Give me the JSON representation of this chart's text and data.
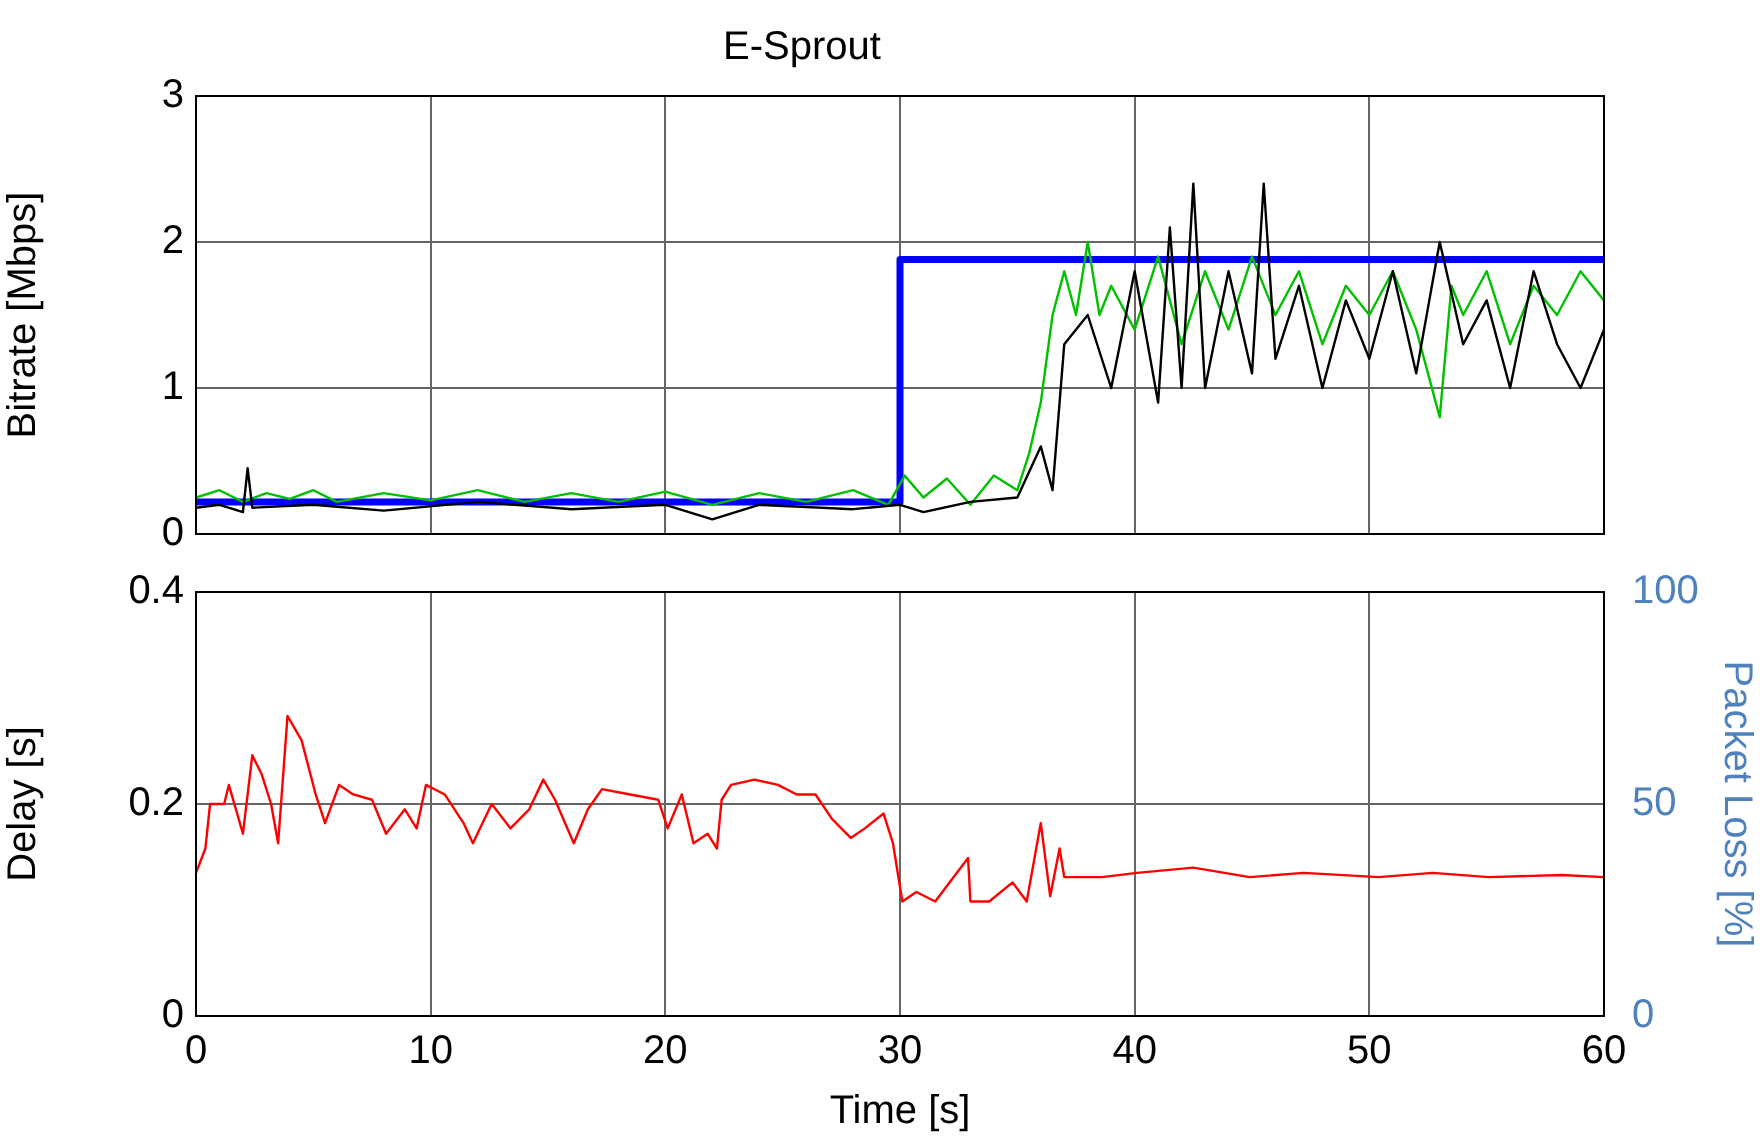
{
  "chart_data": [
    {
      "type": "line",
      "title": "E-Sprout",
      "ylabel": "Bitrate [Mbps]",
      "xlim": [
        0,
        60
      ],
      "xticks": [
        0,
        10,
        20,
        30,
        40,
        50,
        60
      ],
      "ylim": [
        0,
        3
      ],
      "yticks": [
        0,
        1,
        2,
        3
      ],
      "grid": true,
      "tick_labels": "y",
      "series": [
        {
          "color": "#000000",
          "x": [
            0,
            1,
            2,
            2.2,
            2.4,
            5,
            8,
            12,
            16,
            20,
            22,
            24,
            28,
            30,
            31,
            33,
            35,
            36,
            36.5,
            37,
            38,
            39,
            40,
            41,
            41.5,
            42,
            42.5,
            43,
            44,
            45,
            45.5,
            46,
            47,
            48,
            49,
            50,
            51,
            52,
            53,
            54,
            55,
            56,
            57,
            58,
            59,
            60
          ],
          "values": [
            0.18,
            0.2,
            0.15,
            0.45,
            0.18,
            0.2,
            0.16,
            0.22,
            0.17,
            0.2,
            0.1,
            0.2,
            0.17,
            0.2,
            0.15,
            0.22,
            0.25,
            0.6,
            0.3,
            1.3,
            1.5,
            1.0,
            1.8,
            0.9,
            2.1,
            1.0,
            2.4,
            1.0,
            1.8,
            1.1,
            2.4,
            1.2,
            1.7,
            1.0,
            1.6,
            1.2,
            1.8,
            1.1,
            2.0,
            1.3,
            1.6,
            1.0,
            1.8,
            1.3,
            1.0,
            1.4
          ]
        },
        {
          "color": "#00c000",
          "x": [
            0,
            1,
            2,
            3,
            4,
            5,
            6,
            8,
            10,
            12,
            14,
            16,
            18,
            20,
            22,
            24,
            26,
            28,
            29.5,
            30.2,
            31,
            32,
            33,
            34,
            35,
            35.5,
            36,
            36.5,
            37,
            37.5,
            38,
            38.5,
            39,
            40,
            41,
            42,
            43,
            44,
            45,
            46,
            47,
            48,
            49,
            50,
            51,
            52,
            53,
            53.5,
            54,
            55,
            56,
            57,
            58,
            59,
            60
          ],
          "values": [
            0.25,
            0.3,
            0.22,
            0.28,
            0.24,
            0.3,
            0.22,
            0.28,
            0.23,
            0.3,
            0.22,
            0.28,
            0.22,
            0.29,
            0.2,
            0.28,
            0.22,
            0.3,
            0.2,
            0.4,
            0.25,
            0.38,
            0.2,
            0.4,
            0.3,
            0.55,
            0.9,
            1.5,
            1.8,
            1.5,
            2.0,
            1.5,
            1.7,
            1.4,
            1.9,
            1.3,
            1.8,
            1.4,
            1.9,
            1.5,
            1.8,
            1.3,
            1.7,
            1.5,
            1.8,
            1.4,
            0.8,
            1.7,
            1.5,
            1.8,
            1.3,
            1.7,
            1.5,
            1.8,
            1.6
          ]
        },
        {
          "color": "#0000ff",
          "x": [
            0,
            30,
            30,
            60
          ],
          "values": [
            0.22,
            0.22,
            1.88,
            1.88
          ]
        }
      ]
    },
    {
      "type": "line",
      "xlabel": "Time [s]",
      "ylabel": "Delay [s]",
      "y2label": "Packet Loss [%]",
      "xlim": [
        0,
        60
      ],
      "xticks": [
        0,
        10,
        20,
        30,
        40,
        50,
        60
      ],
      "ylim": [
        0,
        0.4
      ],
      "yticks": [
        0,
        0.2,
        0.4
      ],
      "y2lim": [
        0,
        100
      ],
      "y2ticks": [
        0,
        50,
        100
      ],
      "grid": true,
      "series": [
        {
          "color": "#ff0000",
          "x": [
            0,
            0.4,
            0.6,
            1.2,
            1.4,
            2,
            2.4,
            2.8,
            3.2,
            3.5,
            3.9,
            4.5,
            5.1,
            5.5,
            6.1,
            6.7,
            7.5,
            8.1,
            8.9,
            9.4,
            9.8,
            10.6,
            11.4,
            11.8,
            12.6,
            13.4,
            14.2,
            14.8,
            15.3,
            16.1,
            16.7,
            17.3,
            18.5,
            19.7,
            20.1,
            20.7,
            21.2,
            21.8,
            22.2,
            22.4,
            22.8,
            23.8,
            24.8,
            25.6,
            26.4,
            27.1,
            27.9,
            28.5,
            29.3,
            29.7,
            30.1,
            30.7,
            31.5,
            32.9,
            33,
            33.8,
            34.8,
            35.4,
            36,
            36.4,
            36.8,
            37,
            38.6,
            40.1,
            42.5,
            44.9,
            47.2,
            50.4,
            52.7,
            55.1,
            58.2,
            60
          ],
          "values": [
            0.135,
            0.158,
            0.2,
            0.2,
            0.218,
            0.172,
            0.246,
            0.228,
            0.2,
            0.163,
            0.283,
            0.26,
            0.209,
            0.182,
            0.218,
            0.209,
            0.204,
            0.172,
            0.195,
            0.177,
            0.218,
            0.209,
            0.182,
            0.163,
            0.2,
            0.177,
            0.195,
            0.223,
            0.204,
            0.163,
            0.195,
            0.214,
            0.209,
            0.204,
            0.177,
            0.209,
            0.163,
            0.172,
            0.158,
            0.204,
            0.218,
            0.223,
            0.218,
            0.209,
            0.209,
            0.186,
            0.168,
            0.177,
            0.191,
            0.163,
            0.108,
            0.117,
            0.108,
            0.149,
            0.108,
            0.108,
            0.126,
            0.108,
            0.182,
            0.113,
            0.158,
            0.131,
            0.131,
            0.135,
            0.14,
            0.131,
            0.135,
            0.131,
            0.135,
            0.131,
            0.133,
            0.131
          ]
        }
      ]
    }
  ]
}
